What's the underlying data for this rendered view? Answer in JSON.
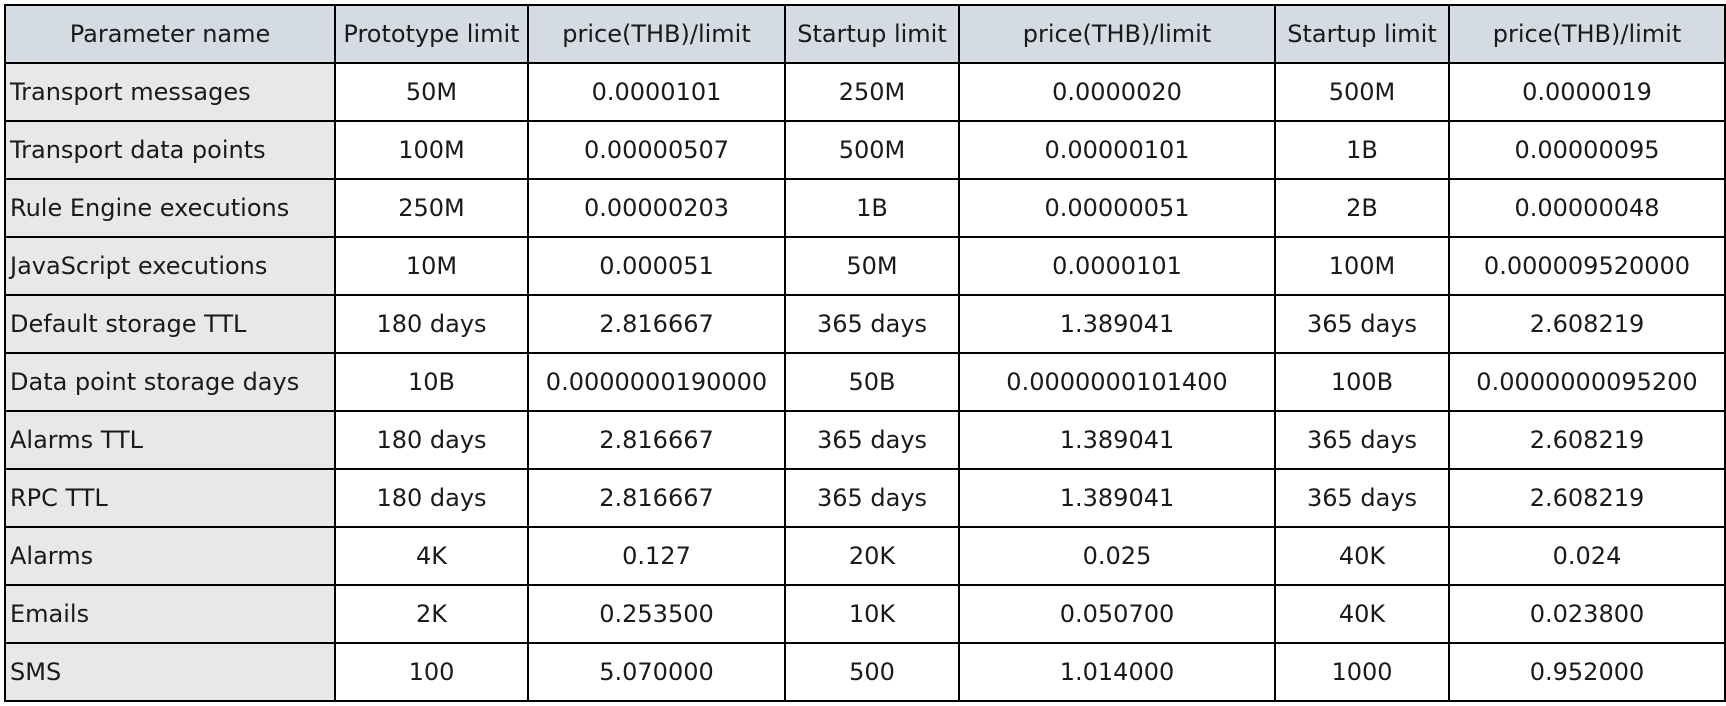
{
  "table": {
    "headers": [
      "Parameter name",
      "Prototype limit",
      "price(THB)/limit",
      "Startup limit",
      "price(THB)/limit",
      "Startup limit",
      "price(THB)/limit"
    ],
    "rows": [
      [
        "Transport messages",
        "50M",
        "0.0000101",
        "250M",
        "0.0000020",
        "500M",
        "0.0000019"
      ],
      [
        "Transport data points",
        "100M",
        "0.00000507",
        "500M",
        "0.00000101",
        "1B",
        "0.00000095"
      ],
      [
        "Rule Engine executions",
        "250M",
        "0.00000203",
        "1B",
        "0.00000051",
        "2B",
        "0.00000048"
      ],
      [
        "JavaScript executions",
        "10M",
        "0.000051",
        "50M",
        "0.0000101",
        "100M",
        "0.000009520000"
      ],
      [
        "Default storage TTL",
        "180 days",
        "2.816667",
        "365 days",
        "1.389041",
        "365 days",
        "2.608219"
      ],
      [
        "Data point storage days",
        "10B",
        "0.0000000190000",
        "50B",
        "0.0000000101400",
        "100B",
        "0.0000000095200"
      ],
      [
        "Alarms TTL",
        "180 days",
        "2.816667",
        "365 days",
        "1.389041",
        "365 days",
        "2.608219"
      ],
      [
        "RPC TTL",
        "180 days",
        "2.816667",
        "365 days",
        "1.389041",
        "365 days",
        "2.608219"
      ],
      [
        "Alarms",
        "4K",
        "0.127",
        "20K",
        "0.025",
        "40K",
        "0.024"
      ],
      [
        "Emails",
        "2K",
        "0.253500",
        "10K",
        "0.050700",
        "40K",
        "0.023800"
      ],
      [
        "SMS",
        "100",
        "5.070000",
        "500",
        "1.014000",
        "1000",
        "0.952000"
      ]
    ]
  }
}
